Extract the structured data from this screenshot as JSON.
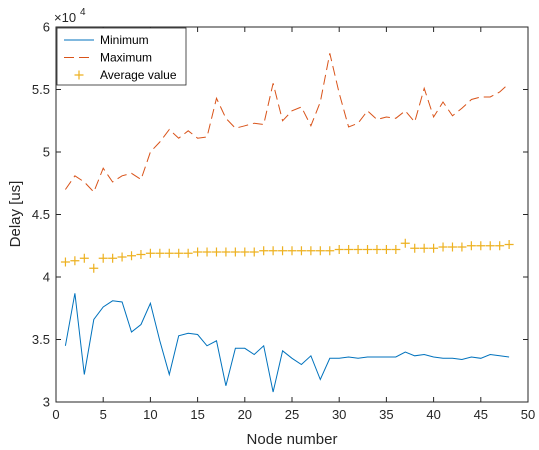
{
  "chart_data": {
    "type": "line",
    "xlabel": "Node number",
    "ylabel": "Delay [us]",
    "xlim": [
      0,
      50
    ],
    "ylim": [
      3,
      6
    ],
    "y_scale_exponent": "4",
    "y_scale_base": "×10",
    "xticks": [
      "0",
      "5",
      "10",
      "15",
      "20",
      "25",
      "30",
      "35",
      "40",
      "45",
      "50"
    ],
    "yticks": [
      "3",
      "3.5",
      "4",
      "4.5",
      "5",
      "5.5",
      "6"
    ],
    "legend_position": "top-left",
    "grid": false,
    "x": [
      1,
      2,
      3,
      4,
      5,
      6,
      7,
      8,
      9,
      10,
      11,
      12,
      13,
      14,
      15,
      16,
      17,
      18,
      19,
      20,
      21,
      22,
      23,
      24,
      25,
      26,
      27,
      28,
      29,
      30,
      31,
      32,
      33,
      34,
      35,
      36,
      37,
      38,
      39,
      40,
      41,
      42,
      43,
      44,
      45,
      46,
      47,
      48
    ],
    "series": [
      {
        "name": "Minimum",
        "color": "#0072BD",
        "style": "solid",
        "values": [
          3.45,
          3.87,
          3.22,
          3.66,
          3.76,
          3.81,
          3.8,
          3.56,
          3.62,
          3.79,
          3.49,
          3.22,
          3.53,
          3.55,
          3.54,
          3.45,
          3.49,
          3.13,
          3.43,
          3.43,
          3.38,
          3.45,
          3.08,
          3.41,
          3.35,
          3.3,
          3.37,
          3.18,
          3.35,
          3.35,
          3.36,
          3.35,
          3.36,
          3.36,
          3.36,
          3.36,
          3.4,
          3.37,
          3.38,
          3.36,
          3.35,
          3.35,
          3.34,
          3.36,
          3.35,
          3.38,
          3.37,
          3.36
        ]
      },
      {
        "name": "Maximum",
        "color": "#D95319",
        "style": "dashed",
        "values": [
          4.7,
          4.81,
          4.76,
          4.68,
          4.87,
          4.76,
          4.81,
          4.83,
          4.78,
          5.0,
          5.08,
          5.18,
          5.11,
          5.17,
          5.11,
          5.12,
          5.43,
          5.27,
          5.19,
          5.21,
          5.23,
          5.22,
          5.55,
          5.25,
          5.33,
          5.36,
          5.21,
          5.4,
          5.79,
          5.47,
          5.2,
          5.23,
          5.33,
          5.26,
          5.28,
          5.27,
          5.33,
          5.24,
          5.51,
          5.28,
          5.4,
          5.29,
          5.35,
          5.42,
          5.44,
          5.44,
          5.48,
          5.55
        ]
      },
      {
        "name": "Average value",
        "color": "#EDB120",
        "style": "marker",
        "values": [
          4.12,
          4.13,
          4.15,
          4.07,
          4.15,
          4.15,
          4.16,
          4.17,
          4.18,
          4.19,
          4.19,
          4.19,
          4.19,
          4.19,
          4.2,
          4.2,
          4.2,
          4.2,
          4.2,
          4.2,
          4.2,
          4.21,
          4.21,
          4.21,
          4.21,
          4.21,
          4.21,
          4.21,
          4.21,
          4.22,
          4.22,
          4.22,
          4.22,
          4.22,
          4.22,
          4.22,
          4.27,
          4.23,
          4.23,
          4.23,
          4.24,
          4.24,
          4.24,
          4.25,
          4.25,
          4.25,
          4.25,
          4.26
        ]
      }
    ]
  }
}
